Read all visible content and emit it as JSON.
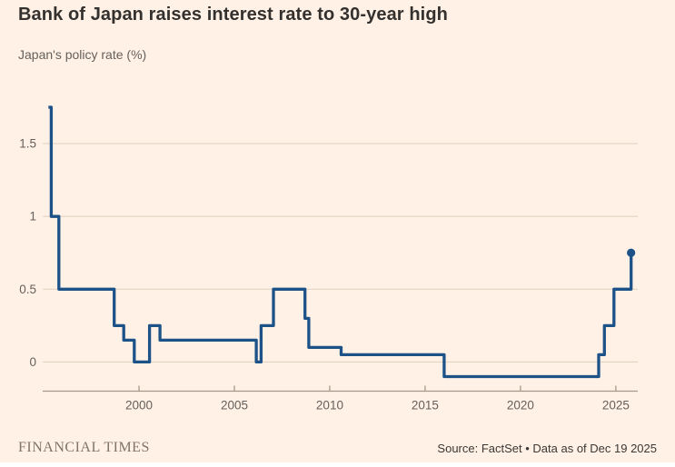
{
  "header": {
    "title": "Bank of Japan raises interest rate to 30-year high",
    "subtitle": "Japan's policy rate (%)"
  },
  "footer": {
    "brand": "FINANCIAL TIMES",
    "source": "Source: FactSet • Data as of Dec 19 2025"
  },
  "theme": {
    "background": "#FFF1E5",
    "line_color": "#1C5288",
    "grid_color": "#E2D4C2",
    "axis_color": "#A39A8A",
    "title_color": "#33302E",
    "muted_text": "#66605C"
  },
  "chart_data": {
    "type": "line",
    "style": "step",
    "title": "Bank of Japan raises interest rate to 30-year high",
    "subtitle": "Japan's policy rate (%)",
    "xlabel": "",
    "ylabel": "Japan's policy rate (%)",
    "x_range": [
      1994.95,
      2026.15
    ],
    "ylim": [
      -0.2,
      1.8
    ],
    "yticks": [
      0,
      0.5,
      1,
      1.5
    ],
    "xticks": [
      2000,
      2005,
      2010,
      2015,
      2020,
      2025
    ],
    "grid": true,
    "legend": false,
    "end_dot": true,
    "end_dot_value": 0.75,
    "series": [
      {
        "name": "Japan policy rate (%)",
        "note": "step points: [decimal_year_level_begins, rate_percent]",
        "steps": [
          [
            1995.25,
            1.75
          ],
          [
            1995.4,
            1.0
          ],
          [
            1995.8,
            0.5
          ],
          [
            1998.7,
            0.25
          ],
          [
            1999.2,
            0.15
          ],
          [
            1999.75,
            0.0
          ],
          [
            2000.55,
            0.25
          ],
          [
            2001.1,
            0.15
          ],
          [
            2006.15,
            0.0
          ],
          [
            2006.4,
            0.25
          ],
          [
            2007.05,
            0.5
          ],
          [
            2008.7,
            0.3
          ],
          [
            2008.9,
            0.1
          ],
          [
            2010.6,
            0.05
          ],
          [
            2016.0,
            -0.1
          ],
          [
            2024.1,
            0.05
          ],
          [
            2024.4,
            0.25
          ],
          [
            2024.9,
            0.5
          ],
          [
            2025.8,
            0.75
          ]
        ]
      }
    ]
  }
}
